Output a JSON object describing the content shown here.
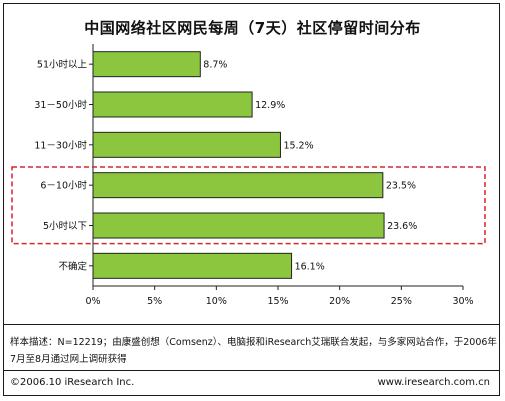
{
  "chart_data": {
    "type": "bar",
    "orientation": "horizontal",
    "title": "中国网络社区网民每周（7天）社区停留时间分布",
    "categories": [
      "51小时以上",
      "31－50小时",
      "11－30小时",
      "6－10小时",
      "5小时以下",
      "不确定"
    ],
    "values": [
      8.7,
      12.9,
      15.2,
      23.5,
      23.6,
      16.1
    ],
    "value_labels": [
      "8.7%",
      "12.9%",
      "15.2%",
      "23.5%",
      "23.6%",
      "16.1%"
    ],
    "x_ticks": [
      "0%",
      "5%",
      "10%",
      "15%",
      "20%",
      "25%",
      "30%"
    ],
    "xlim": [
      0,
      30
    ],
    "highlighted_categories": [
      "6－10小时",
      "5小时以下"
    ],
    "bar_color": "#8cc63f",
    "highlight_box_color": "#d9262a",
    "grid": false
  },
  "note": "样本描述：N=12219；由康盛创想（Comsenz）、电脑报和iResearch艾瑞联合发起，与多家网站合作，于2006年7月至8月通过网上调研获得",
  "footer": {
    "copyright": "©2006.10 iResearch Inc.",
    "website": "www.iresearch.com.cn"
  }
}
